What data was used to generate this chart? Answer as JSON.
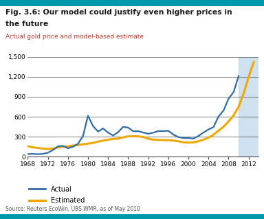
{
  "title_line1": "Fig. 3.6: Our model could justify even higher prices in",
  "title_line2": "the future",
  "subtitle": "Actual gold price and model-based estimate",
  "subtitle_color": "#c0392b",
  "source": "Source: Reuters EcoWin, UBS WMR, as of May 2010",
  "xlim": [
    1968,
    2014
  ],
  "ylim": [
    0,
    1500
  ],
  "yticks": [
    0,
    300,
    600,
    900,
    1200,
    1500
  ],
  "ytick_labels": [
    "0",
    "300",
    "600",
    "900",
    "1,200",
    "1,500"
  ],
  "xticks": [
    1968,
    1972,
    1976,
    1980,
    1984,
    1988,
    1992,
    1996,
    2000,
    2004,
    2008,
    2012
  ],
  "shade_start": 2010,
  "shade_end": 2014,
  "shade_color": "#cfe0ef",
  "actual_color": "#2e6da4",
  "estimated_color": "#f0a800",
  "title_color": "#1a1a1a",
  "top_bar_color": "#0099aa",
  "bottom_bar_color": "#0099aa",
  "actual_x": [
    1968,
    1969,
    1970,
    1971,
    1972,
    1973,
    1974,
    1975,
    1976,
    1977,
    1978,
    1979,
    1980,
    1981,
    1982,
    1983,
    1984,
    1985,
    1986,
    1987,
    1988,
    1989,
    1990,
    1991,
    1992,
    1993,
    1994,
    1995,
    1996,
    1997,
    1998,
    1999,
    2000,
    2001,
    2002,
    2003,
    2004,
    2005,
    2006,
    2007,
    2008,
    2009,
    2010
  ],
  "actual_y": [
    38,
    41,
    36,
    41,
    58,
    97,
    154,
    161,
    125,
    148,
    193,
    307,
    615,
    460,
    376,
    424,
    361,
    317,
    368,
    447,
    437,
    381,
    383,
    362,
    344,
    360,
    384,
    384,
    388,
    331,
    294,
    279,
    279,
    271,
    310,
    363,
    409,
    444,
    604,
    695,
    872,
    972,
    1215
  ],
  "estimated_x": [
    1968,
    1969,
    1970,
    1971,
    1972,
    1973,
    1974,
    1975,
    1976,
    1977,
    1978,
    1979,
    1980,
    1981,
    1982,
    1983,
    1984,
    1985,
    1986,
    1987,
    1988,
    1989,
    1990,
    1991,
    1992,
    1993,
    1994,
    1995,
    1996,
    1997,
    1998,
    1999,
    2000,
    2001,
    2002,
    2003,
    2004,
    2005,
    2006,
    2007,
    2008,
    2009,
    2010,
    2011,
    2012,
    2013
  ],
  "estimated_y": [
    155,
    140,
    130,
    120,
    115,
    120,
    135,
    150,
    155,
    165,
    175,
    185,
    195,
    205,
    225,
    240,
    255,
    265,
    270,
    290,
    305,
    305,
    305,
    295,
    270,
    255,
    250,
    248,
    248,
    240,
    230,
    215,
    210,
    215,
    230,
    255,
    285,
    330,
    390,
    450,
    530,
    620,
    750,
    950,
    1200,
    1420
  ],
  "background_color": "#ffffff"
}
